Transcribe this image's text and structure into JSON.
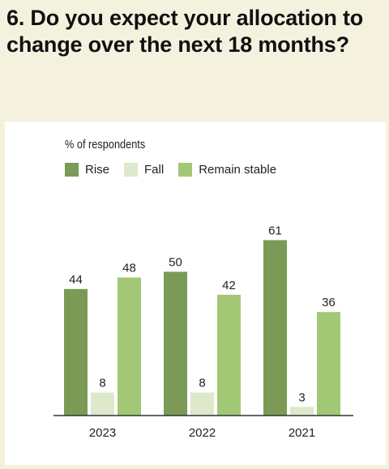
{
  "title": "6. Do you expect your allocation to change over the next 18 months?",
  "chart_data": {
    "type": "bar",
    "unit_label": "% of respondents",
    "categories": [
      "2023",
      "2022",
      "2021"
    ],
    "series": [
      {
        "name": "Rise",
        "color": "#7a9a55",
        "values": [
          44,
          50,
          61
        ]
      },
      {
        "name": "Fall",
        "color": "#dde8cc",
        "values": [
          8,
          8,
          3
        ]
      },
      {
        "name": "Remain stable",
        "color": "#a2c775",
        "values": [
          48,
          42,
          36
        ]
      }
    ],
    "ylim": [
      0,
      70
    ],
    "grid": false,
    "legend_position": "top-left"
  }
}
